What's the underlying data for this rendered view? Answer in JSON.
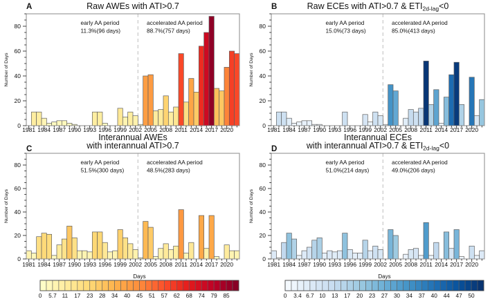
{
  "figure": {
    "background": "#ffffff",
    "ylabel": "Number of Days",
    "ylim": [
      0,
      90
    ],
    "yticks": [
      0,
      20,
      40,
      60,
      80
    ],
    "y_minor_step": 5,
    "years": [
      1981,
      1982,
      1983,
      1984,
      1985,
      1986,
      1987,
      1988,
      1989,
      1990,
      1991,
      1992,
      1993,
      1994,
      1995,
      1996,
      1997,
      1998,
      1999,
      2000,
      2001,
      2002,
      2003,
      2004,
      2005,
      2006,
      2007,
      2008,
      2009,
      2010,
      2011,
      2012,
      2013,
      2014,
      2015,
      2016,
      2017,
      2018,
      2019,
      2020,
      2021,
      2022
    ],
    "year_tick_labels": [
      1981,
      1984,
      1987,
      1990,
      1993,
      1996,
      1999,
      2002,
      2005,
      2008,
      2011,
      2014,
      2017,
      2020
    ],
    "separator_before_year": 2003,
    "grid": false,
    "legend_position": "none"
  },
  "colormaps": {
    "warm": {
      "stops": [
        "#ffffcc",
        "#ffeda0",
        "#fed976",
        "#feb24c",
        "#fd8d3c",
        "#fc4e2a",
        "#e31a1c",
        "#bd0026",
        "#800026"
      ],
      "vmax": 90.7
    },
    "blue": {
      "stops": [
        "#f7fbff",
        "#deebf7",
        "#c6dbef",
        "#9ecae1",
        "#6baed6",
        "#4292c6",
        "#2171b5",
        "#08519c",
        "#08306b"
      ],
      "vmax": 53.3
    }
  },
  "colorbars": [
    {
      "id": "warm",
      "title": "Days",
      "cells": 32,
      "tick_labels": [
        "0",
        "5.7",
        "11",
        "17",
        "23",
        "28",
        "34",
        "40",
        "45",
        "51",
        "57",
        "62",
        "68",
        "74",
        "79",
        "85"
      ]
    },
    {
      "id": "blue",
      "title": "Days",
      "cells": 32,
      "tick_labels": [
        "0",
        "3.4",
        "6.7",
        "10",
        "13",
        "17",
        "20",
        "23",
        "27",
        "30",
        "34",
        "37",
        "40",
        "44",
        "47",
        "50"
      ]
    }
  ],
  "chart_data": [
    {
      "id": "A",
      "letter": "A",
      "type": "bar",
      "colormap": "warm",
      "title_lines": [
        [
          {
            "t": "Raw AWEs with ATI>0.7"
          }
        ]
      ],
      "xlabel": "",
      "ylabel": "Number of Days",
      "ylim": [
        0,
        90
      ],
      "values": [
        0,
        11,
        11,
        6,
        2,
        3,
        4,
        4,
        2,
        1,
        0,
        0,
        0,
        11,
        11,
        2,
        0,
        0,
        14,
        7,
        11,
        8,
        1,
        40,
        41,
        12,
        13,
        24,
        11,
        15,
        58,
        19,
        38,
        27,
        64,
        75,
        88,
        30,
        28,
        47,
        60,
        58
      ],
      "annotations": {
        "early": {
          "label": "early AA period",
          "stats": "11.3%(96 days)"
        },
        "accelerated": {
          "label": "accelerated AA period",
          "stats": "88.7%(757 days)"
        }
      }
    },
    {
      "id": "B",
      "letter": "B",
      "type": "bar",
      "colormap": "blue",
      "title_lines": [
        [
          {
            "t": "Raw ECEs with ATI>0.7 & ETI"
          },
          {
            "t": "2d-lag",
            "sub": true
          },
          {
            "t": "<0"
          }
        ]
      ],
      "xlabel": "",
      "ylabel": "Number of Days",
      "ylim": [
        0,
        90
      ],
      "values": [
        0,
        11,
        11,
        6,
        2,
        3,
        4,
        4,
        1,
        1,
        0,
        0,
        0,
        0,
        11,
        0,
        0,
        0,
        9,
        3,
        11,
        8,
        1,
        33,
        28,
        0,
        6,
        13,
        11,
        14,
        52,
        17,
        29,
        2,
        23,
        41,
        51,
        17,
        0,
        39,
        8,
        21
      ],
      "annotations": {
        "early": {
          "label": "early AA period",
          "stats": "15.0%(73 days)"
        },
        "accelerated": {
          "label": "accelerated AA period",
          "stats": "85.0%(413 days)"
        }
      }
    },
    {
      "id": "C",
      "letter": "C",
      "type": "bar",
      "colormap": "warm",
      "title_lines": [
        [
          {
            "t": "Interannual AWEs"
          }
        ],
        [
          {
            "t": "with interannual ATI>0.7"
          }
        ]
      ],
      "xlabel": "",
      "ylabel": "Number of Days",
      "ylim": [
        0,
        90
      ],
      "values": [
        7,
        5,
        19,
        22,
        21,
        3,
        12,
        17,
        28,
        18,
        7,
        7,
        6,
        23,
        23,
        14,
        6,
        7,
        25,
        18,
        13,
        8,
        1,
        32,
        27,
        2,
        9,
        13,
        8,
        11,
        42,
        5,
        14,
        0,
        37,
        9,
        37,
        2,
        0,
        12,
        7,
        7
      ],
      "annotations": {
        "early": {
          "label": "early AA period",
          "stats": "51.5%(300 days)"
        },
        "accelerated": {
          "label": "accelerated AA period",
          "stats": "48.5%(283 days)"
        }
      }
    },
    {
      "id": "D",
      "letter": "D",
      "type": "bar",
      "colormap": "blue",
      "title_lines": [
        [
          {
            "t": "Interannual ECEs"
          }
        ],
        [
          {
            "t": "with interannual ATI>0.7 & ETI"
          },
          {
            "t": "2d-lag",
            "sub": true
          },
          {
            "t": "<0"
          }
        ]
      ],
      "xlabel": "",
      "ylabel": "Number of Days",
      "ylim": [
        0,
        90
      ],
      "values": [
        7,
        1,
        14,
        22,
        17,
        3,
        7,
        10,
        16,
        18,
        5,
        7,
        6,
        7,
        22,
        8,
        5,
        5,
        16,
        7,
        11,
        8,
        0,
        25,
        20,
        0,
        4,
        8,
        9,
        3,
        31,
        3,
        14,
        0,
        23,
        9,
        25,
        2,
        0,
        11,
        3,
        7
      ],
      "annotations": {
        "early": {
          "label": "early AA period",
          "stats": "51.0%(214 days)"
        },
        "accelerated": {
          "label": "accelerated AA period",
          "stats": "49.0%(206 days)"
        }
      }
    }
  ]
}
